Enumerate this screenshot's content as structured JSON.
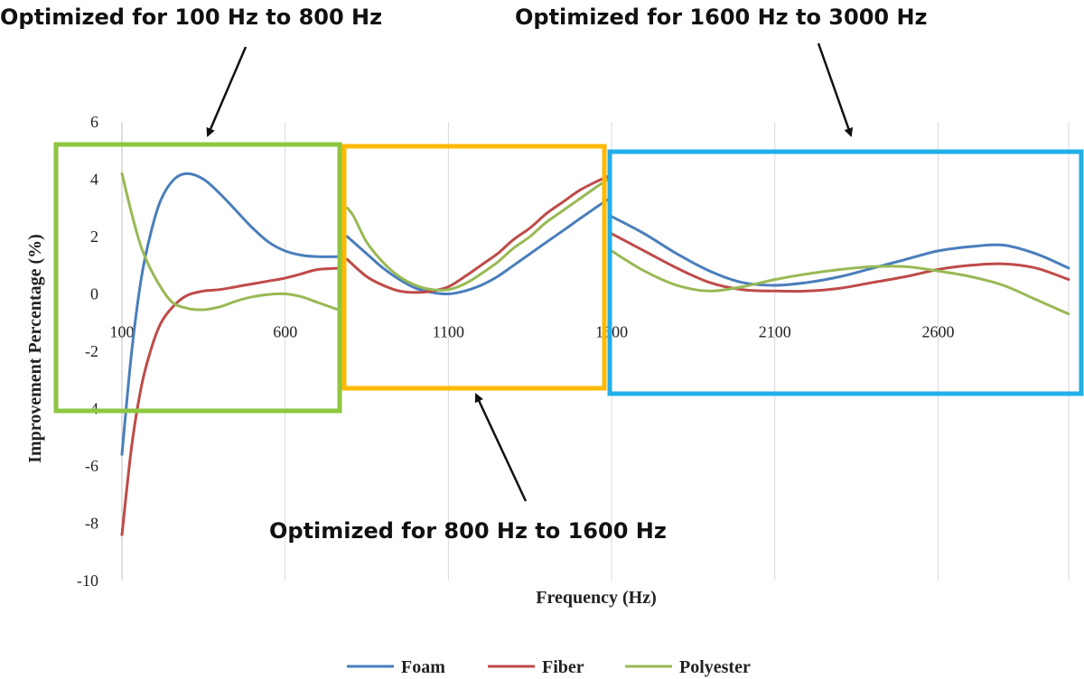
{
  "chart_data": {
    "type": "line",
    "xlabel": "Frequency (Hz)",
    "ylabel": "Improvement Percentage (%)",
    "xlim": [
      100,
      3000
    ],
    "ylim": [
      -10,
      6
    ],
    "x_ticks": [
      100,
      600,
      1100,
      1600,
      2100,
      2600
    ],
    "y_ticks": [
      -10,
      -8,
      -6,
      -4,
      -2,
      0,
      2,
      4,
      6
    ],
    "grid": "vertical",
    "legend_position": "bottom",
    "segments": [
      {
        "range": [
          100,
          780
        ],
        "series": [
          {
            "name": "Foam",
            "color": "#4A7EBB",
            "points": [
              [
                100,
                -5.6
              ],
              [
                130,
                -2.0
              ],
              [
                160,
                0.6
              ],
              [
                190,
                2.2
              ],
              [
                220,
                3.3
              ],
              [
                260,
                4.0
              ],
              [
                300,
                4.2
              ],
              [
                350,
                4.0
              ],
              [
                400,
                3.5
              ],
              [
                450,
                2.9
              ],
              [
                500,
                2.3
              ],
              [
                550,
                1.8
              ],
              [
                600,
                1.5
              ],
              [
                650,
                1.35
              ],
              [
                700,
                1.3
              ],
              [
                780,
                1.3
              ]
            ]
          },
          {
            "name": "Fiber",
            "color": "#BE4B48",
            "points": [
              [
                100,
                -8.4
              ],
              [
                130,
                -5.3
              ],
              [
                160,
                -3.2
              ],
              [
                190,
                -1.9
              ],
              [
                220,
                -1.0
              ],
              [
                260,
                -0.4
              ],
              [
                300,
                -0.05
              ],
              [
                350,
                0.1
              ],
              [
                400,
                0.15
              ],
              [
                450,
                0.25
              ],
              [
                500,
                0.35
              ],
              [
                550,
                0.45
              ],
              [
                600,
                0.55
              ],
              [
                650,
                0.7
              ],
              [
                700,
                0.85
              ],
              [
                780,
                0.9
              ]
            ]
          },
          {
            "name": "Polyester",
            "color": "#98B954",
            "points": [
              [
                100,
                4.2
              ],
              [
                130,
                2.8
              ],
              [
                160,
                1.6
              ],
              [
                200,
                0.6
              ],
              [
                250,
                -0.25
              ],
              [
                300,
                -0.5
              ],
              [
                350,
                -0.55
              ],
              [
                400,
                -0.45
              ],
              [
                450,
                -0.25
              ],
              [
                500,
                -0.1
              ],
              [
                550,
                -0.02
              ],
              [
                600,
                0.0
              ],
              [
                650,
                -0.1
              ],
              [
                700,
                -0.3
              ],
              [
                750,
                -0.5
              ],
              [
                780,
                -0.6
              ]
            ]
          }
        ]
      },
      {
        "range": [
          790,
          1590
        ],
        "series": [
          {
            "name": "Foam",
            "color": "#4A7EBB",
            "points": [
              [
                790,
                2.0
              ],
              [
                850,
                1.4
              ],
              [
                900,
                0.9
              ],
              [
                950,
                0.5
              ],
              [
                1000,
                0.2
              ],
              [
                1050,
                0.05
              ],
              [
                1100,
                0.0
              ],
              [
                1150,
                0.1
              ],
              [
                1200,
                0.3
              ],
              [
                1250,
                0.6
              ],
              [
                1300,
                1.0
              ],
              [
                1350,
                1.4
              ],
              [
                1400,
                1.8
              ],
              [
                1450,
                2.2
              ],
              [
                1500,
                2.6
              ],
              [
                1550,
                3.0
              ],
              [
                1590,
                3.3
              ]
            ]
          },
          {
            "name": "Fiber",
            "color": "#BE4B48",
            "points": [
              [
                790,
                1.2
              ],
              [
                850,
                0.6
              ],
              [
                900,
                0.3
              ],
              [
                950,
                0.1
              ],
              [
                1000,
                0.05
              ],
              [
                1050,
                0.1
              ],
              [
                1100,
                0.25
              ],
              [
                1150,
                0.6
              ],
              [
                1200,
                1.0
              ],
              [
                1250,
                1.4
              ],
              [
                1300,
                1.9
              ],
              [
                1350,
                2.3
              ],
              [
                1400,
                2.8
              ],
              [
                1450,
                3.2
              ],
              [
                1500,
                3.6
              ],
              [
                1550,
                3.9
              ],
              [
                1590,
                4.1
              ]
            ]
          },
          {
            "name": "Polyester",
            "color": "#98B954",
            "points": [
              [
                790,
                3.0
              ],
              [
                810,
                2.7
              ],
              [
                850,
                1.8
              ],
              [
                900,
                1.1
              ],
              [
                950,
                0.6
              ],
              [
                1000,
                0.3
              ],
              [
                1050,
                0.15
              ],
              [
                1100,
                0.15
              ],
              [
                1150,
                0.35
              ],
              [
                1200,
                0.7
              ],
              [
                1250,
                1.1
              ],
              [
                1300,
                1.6
              ],
              [
                1350,
                2.0
              ],
              [
                1400,
                2.5
              ],
              [
                1450,
                2.9
              ],
              [
                1500,
                3.3
              ],
              [
                1550,
                3.7
              ],
              [
                1590,
                4.0
              ]
            ]
          }
        ]
      },
      {
        "range": [
          1600,
          3000
        ],
        "series": [
          {
            "name": "Foam",
            "color": "#4A7EBB",
            "points": [
              [
                1600,
                2.7
              ],
              [
                1700,
                2.1
              ],
              [
                1800,
                1.4
              ],
              [
                1900,
                0.8
              ],
              [
                2000,
                0.4
              ],
              [
                2100,
                0.3
              ],
              [
                2200,
                0.4
              ],
              [
                2300,
                0.6
              ],
              [
                2400,
                0.9
              ],
              [
                2500,
                1.2
              ],
              [
                2600,
                1.5
              ],
              [
                2700,
                1.65
              ],
              [
                2800,
                1.7
              ],
              [
                2900,
                1.4
              ],
              [
                3000,
                0.9
              ]
            ]
          },
          {
            "name": "Fiber",
            "color": "#BE4B48",
            "points": [
              [
                1600,
                2.1
              ],
              [
                1700,
                1.5
              ],
              [
                1800,
                0.9
              ],
              [
                1900,
                0.4
              ],
              [
                2000,
                0.15
              ],
              [
                2100,
                0.1
              ],
              [
                2200,
                0.1
              ],
              [
                2300,
                0.2
              ],
              [
                2400,
                0.4
              ],
              [
                2500,
                0.6
              ],
              [
                2600,
                0.85
              ],
              [
                2700,
                1.0
              ],
              [
                2800,
                1.05
              ],
              [
                2900,
                0.9
              ],
              [
                3000,
                0.5
              ]
            ]
          },
          {
            "name": "Polyester",
            "color": "#98B954",
            "points": [
              [
                1600,
                1.5
              ],
              [
                1700,
                0.8
              ],
              [
                1800,
                0.3
              ],
              [
                1900,
                0.1
              ],
              [
                2000,
                0.25
              ],
              [
                2100,
                0.5
              ],
              [
                2200,
                0.7
              ],
              [
                2300,
                0.85
              ],
              [
                2400,
                0.95
              ],
              [
                2500,
                0.95
              ],
              [
                2600,
                0.8
              ],
              [
                2700,
                0.6
              ],
              [
                2800,
                0.3
              ],
              [
                2900,
                -0.2
              ],
              [
                3000,
                -0.7
              ]
            ]
          }
        ]
      }
    ]
  },
  "legend": [
    {
      "name": "Foam",
      "color": "#4A7EBB"
    },
    {
      "name": "Fiber",
      "color": "#BE4B48"
    },
    {
      "name": "Polyester",
      "color": "#98B954"
    }
  ],
  "annotations": {
    "low": {
      "text": "Optimized for 100 Hz to 800 Hz",
      "box_color": "#8DC63F",
      "range_hz": [
        100,
        800
      ]
    },
    "mid": {
      "text": "Optimized for 800 Hz to 1600 Hz",
      "box_color": "#FFB900",
      "range_hz": [
        800,
        1600
      ]
    },
    "high": {
      "text": "Optimized for 1600 Hz to 3000 Hz",
      "box_color": "#22AEE8",
      "range_hz": [
        1600,
        3000
      ]
    }
  }
}
